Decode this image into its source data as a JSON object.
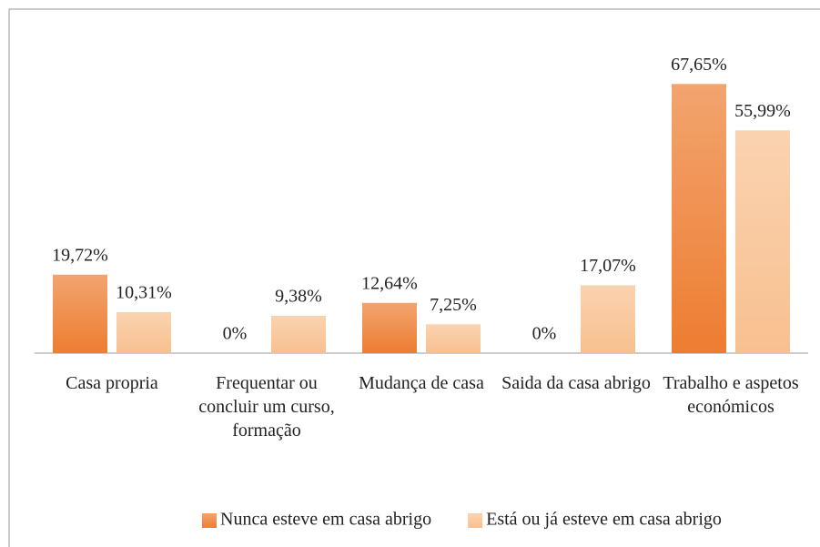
{
  "chart_data": {
    "type": "bar",
    "categories": [
      "Casa propria",
      "Frequentar ou concluir um curso, formação",
      "Mudança de casa",
      "Saida da casa abrigo",
      "Trabalho e aspetos económicos"
    ],
    "series": [
      {
        "name": "Nunca esteve em casa abrigo",
        "color": "#ED7D31",
        "values": [
          19.72,
          0,
          12.64,
          0,
          67.65
        ],
        "value_labels": [
          "19,72%",
          "0%",
          "12,64%",
          "0%",
          "67,65%"
        ]
      },
      {
        "name": "Está ou já esteve em casa abrigo",
        "color": "#F8C08F",
        "values": [
          10.31,
          9.38,
          7.25,
          17.07,
          55.99
        ],
        "value_labels": [
          "10,31%",
          "9,38%",
          "7,25%",
          "17,07%",
          "55,99%"
        ]
      }
    ],
    "ylim": [
      0,
      70
    ],
    "legend": "bottom"
  }
}
